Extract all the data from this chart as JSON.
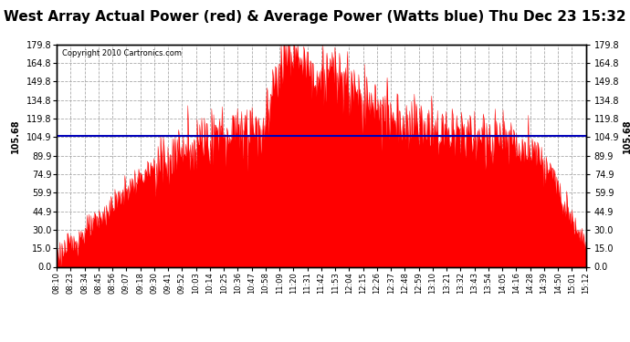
{
  "title": "West Array Actual Power (red) & Average Power (Watts blue) Thu Dec 23 15:32",
  "copyright": "Copyright 2010 Cartronics.com",
  "avg_power": 105.68,
  "ymin": 0.0,
  "ymax": 179.8,
  "yticks": [
    0.0,
    15.0,
    30.0,
    44.9,
    59.9,
    74.9,
    89.9,
    104.9,
    119.8,
    134.8,
    149.8,
    164.8,
    179.8
  ],
  "xtick_labels": [
    "08:10",
    "08:23",
    "08:34",
    "08:45",
    "08:56",
    "09:07",
    "09:18",
    "09:30",
    "09:41",
    "09:52",
    "10:03",
    "10:14",
    "10:25",
    "10:36",
    "10:47",
    "10:58",
    "11:09",
    "11:20",
    "11:31",
    "11:42",
    "11:53",
    "12:04",
    "12:15",
    "12:26",
    "12:37",
    "12:48",
    "12:59",
    "13:10",
    "13:21",
    "13:32",
    "13:43",
    "13:54",
    "14:05",
    "14:16",
    "14:28",
    "14:39",
    "14:50",
    "15:01",
    "15:12"
  ],
  "fill_color": "#FF0000",
  "line_color": "#0000BB",
  "grid_color": "#AAAAAA",
  "bg_color": "#FFFFFF",
  "title_fontsize": 11,
  "key_x": [
    0,
    1,
    2,
    3,
    4,
    5,
    6,
    7,
    8,
    9,
    10,
    11,
    12,
    13,
    14,
    15,
    16,
    17,
    18,
    19,
    20,
    21,
    22,
    23,
    24,
    25,
    26,
    27,
    28,
    29,
    30,
    31,
    32,
    33,
    34,
    35,
    36,
    37,
    38
  ],
  "key_values": [
    10,
    18,
    28,
    38,
    50,
    62,
    72,
    80,
    88,
    95,
    100,
    105,
    108,
    112,
    115,
    120,
    165,
    175,
    160,
    155,
    158,
    145,
    135,
    130,
    120,
    118,
    115,
    112,
    110,
    108,
    106,
    104,
    102,
    100,
    95,
    85,
    65,
    40,
    20
  ]
}
